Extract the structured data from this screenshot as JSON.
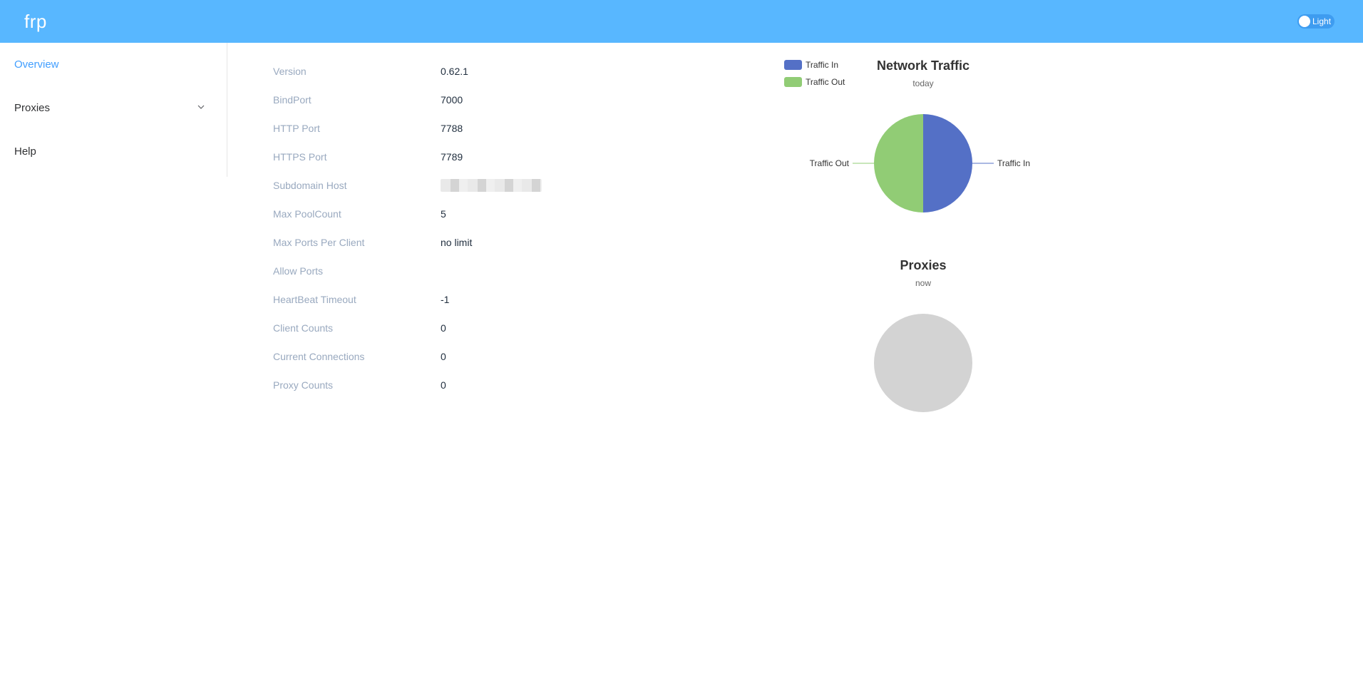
{
  "header": {
    "brand": "frp",
    "theme_toggle_label": "Light"
  },
  "sidebar": {
    "items": [
      {
        "label": "Overview",
        "active": true
      },
      {
        "label": "Proxies",
        "has_submenu": true
      },
      {
        "label": "Help"
      }
    ]
  },
  "server_info": {
    "rows": [
      {
        "label": "Version",
        "value": "0.62.1"
      },
      {
        "label": "BindPort",
        "value": "7000"
      },
      {
        "label": "HTTP Port",
        "value": "7788"
      },
      {
        "label": "HTTPS Port",
        "value": "7789"
      },
      {
        "label": "Subdomain Host",
        "value": ""
      },
      {
        "label": "Max PoolCount",
        "value": "5"
      },
      {
        "label": "Max Ports Per Client",
        "value": "no limit"
      },
      {
        "label": "Allow Ports",
        "value": ""
      },
      {
        "label": "HeartBeat Timeout",
        "value": "-1"
      },
      {
        "label": "Client Counts",
        "value": "0"
      },
      {
        "label": "Current Connections",
        "value": "0"
      },
      {
        "label": "Proxy Counts",
        "value": "0"
      }
    ]
  },
  "colors": {
    "header": "#58b7ff",
    "traffic_in": "#5470c6",
    "traffic_out": "#91cc75",
    "empty_pie": "#d3d3d3"
  },
  "chart_data": [
    {
      "type": "pie",
      "title": "Network Traffic",
      "subtitle": "today",
      "legend": [
        "Traffic In",
        "Traffic Out"
      ],
      "legend_position": "top-left",
      "slices": [
        {
          "name": "Traffic In",
          "value": 50
        },
        {
          "name": "Traffic Out",
          "value": 50
        }
      ]
    },
    {
      "type": "pie",
      "title": "Proxies",
      "subtitle": "now",
      "slices": []
    }
  ]
}
